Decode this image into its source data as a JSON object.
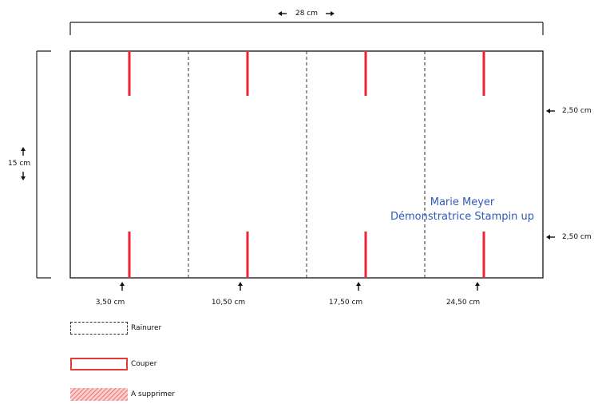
{
  "dimensions": {
    "width_label": "28 cm",
    "height_label": "15 cm",
    "top_offset_label": "2,50 cm",
    "bottom_offset_label": "2,50 cm"
  },
  "positions": [
    {
      "label": "3,50 cm"
    },
    {
      "label": "10,50 cm"
    },
    {
      "label": "17,50 cm"
    },
    {
      "label": "24,50 cm"
    }
  ],
  "watermark": {
    "line1": "Marie Meyer",
    "line2": "Démonstratrice Stampin up"
  },
  "legend": [
    {
      "label": "Rainurer",
      "style": "dashed",
      "color": "#333333"
    },
    {
      "label": "Couper",
      "style": "solid",
      "color": "#e53935"
    },
    {
      "label": "A supprimer",
      "style": "hatched",
      "color": "#f08a8a"
    }
  ],
  "colors": {
    "outline": "#222222",
    "cut": "#ee2233",
    "fold": "#333333",
    "watermark": "#2f59b8"
  }
}
